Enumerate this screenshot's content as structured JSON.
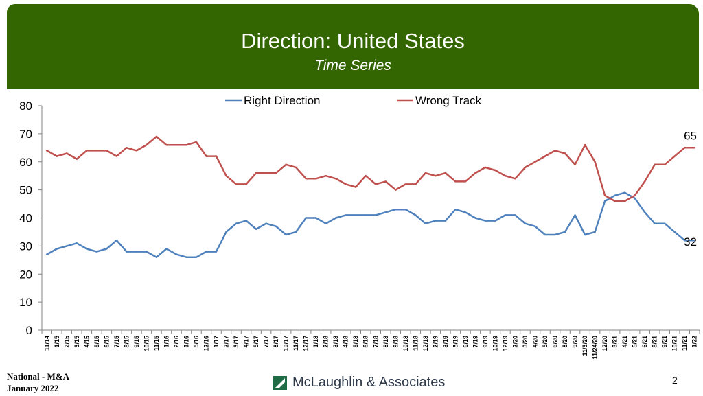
{
  "header": {
    "title": "Direction: United States",
    "subtitle": "Time Series"
  },
  "footer": {
    "line1": "National - M&A",
    "line2": "January 2022",
    "brand": "McLaughlin & Associates",
    "page": "2"
  },
  "colors": {
    "header_bg": "#336600",
    "right_direction": "#4f81bd",
    "wrong_track": "#c0504d",
    "logo": "#1e6b45"
  },
  "chart_data": {
    "type": "line",
    "ylim": [
      0,
      80
    ],
    "yticks": [
      0,
      10,
      20,
      30,
      40,
      50,
      60,
      70,
      80
    ],
    "grid": false,
    "legend_position": "top",
    "x": [
      "11/14",
      "1/15",
      "2/15",
      "3/15",
      "4/15",
      "5/15",
      "6/15",
      "7/15",
      "8/15",
      "9/15",
      "10/15",
      "11/15",
      "1/16",
      "2/16",
      "3/16",
      "5/16",
      "12/16",
      "1/17",
      "2/17",
      "3/17",
      "4/17",
      "5/17",
      "7/17",
      "8/17",
      "10/17",
      "11/17",
      "12/17",
      "1/18",
      "2/18",
      "3/18",
      "4/18",
      "5/18",
      "6/18",
      "7/18",
      "8/18",
      "9/18",
      "10/18",
      "11/18",
      "12/18",
      "2/19",
      "3/19",
      "5/19",
      "6/19",
      "7/19",
      "9/19",
      "10/19",
      "12/19",
      "2/20",
      "3/20",
      "4/20",
      "5/20",
      "6/20",
      "8/20",
      "9/20",
      "11/3/20",
      "11/24/20",
      "12/20",
      "3/21",
      "4/21",
      "5/21",
      "6/21",
      "8/21",
      "9/21",
      "10/21",
      "11/21",
      "1/22"
    ],
    "series": [
      {
        "name": "Right Direction",
        "color": "#4f81bd",
        "values": [
          27,
          29,
          30,
          31,
          29,
          28,
          29,
          32,
          28,
          28,
          28,
          26,
          29,
          27,
          26,
          26,
          28,
          28,
          35,
          38,
          39,
          36,
          38,
          37,
          34,
          35,
          40,
          40,
          38,
          40,
          41,
          41,
          41,
          41,
          42,
          43,
          43,
          41,
          38,
          39,
          39,
          43,
          42,
          40,
          39,
          39,
          41,
          41,
          38,
          37,
          34,
          34,
          35,
          41,
          34,
          35,
          46,
          48,
          49,
          47,
          42,
          38,
          38,
          35,
          32,
          32
        ],
        "end_label": "32"
      },
      {
        "name": "Wrong Track",
        "color": "#c0504d",
        "values": [
          64,
          62,
          63,
          61,
          64,
          64,
          64,
          62,
          65,
          64,
          66,
          69,
          66,
          66,
          66,
          67,
          62,
          62,
          55,
          52,
          52,
          56,
          56,
          56,
          59,
          58,
          54,
          54,
          55,
          54,
          52,
          51,
          55,
          52,
          53,
          50,
          52,
          52,
          56,
          55,
          56,
          53,
          53,
          56,
          58,
          57,
          55,
          54,
          58,
          60,
          62,
          64,
          63,
          59,
          66,
          60,
          48,
          46,
          46,
          48,
          53,
          59,
          59,
          62,
          65,
          65
        ],
        "end_label": "65"
      }
    ]
  }
}
